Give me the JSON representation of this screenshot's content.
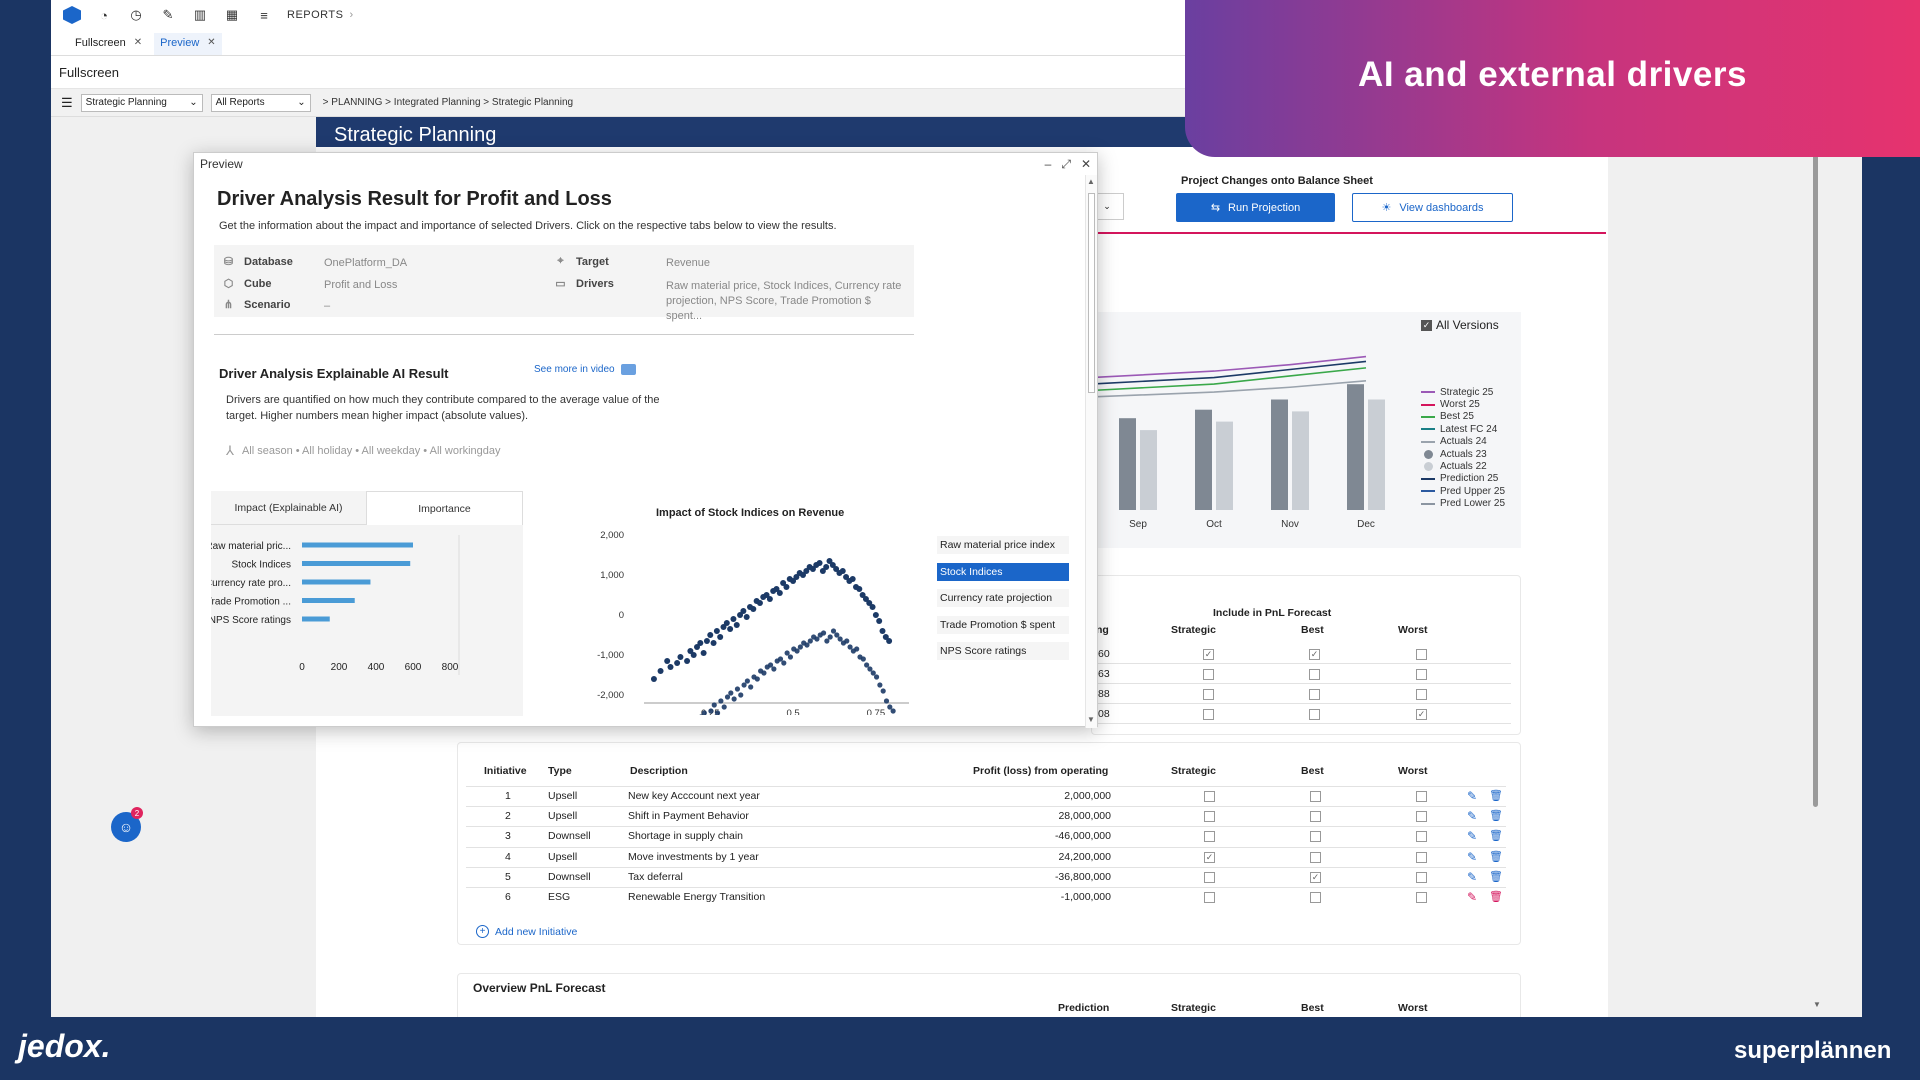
{
  "topbar": {
    "reports_label": "REPORTS"
  },
  "tabs": [
    {
      "label": "Fullscreen"
    },
    {
      "label": "Preview"
    }
  ],
  "subbar": {
    "title": "Fullscreen"
  },
  "toolbar": {
    "dropdown1": "Strategic Planning",
    "dropdown2": "All Reports",
    "breadcrumb": "> PLANNING > Integrated Planning > Strategic Planning"
  },
  "report": {
    "title": "Strategic Planning",
    "project_title": "Project Changes onto Balance Sheet",
    "run_button": "Run Projection",
    "view_button": "View dashboards",
    "all_versions": "All Versions",
    "chart_x_labels": [
      "Sep",
      "Oct",
      "Nov",
      "Dec"
    ],
    "legend": [
      {
        "label": "Strategic 25",
        "color": "#9b59b6",
        "kind": "line"
      },
      {
        "label": "Worst 25",
        "color": "#d4155c",
        "kind": "line"
      },
      {
        "label": "Best 25",
        "color": "#3aa84a",
        "kind": "line"
      },
      {
        "label": "Latest FC 24",
        "color": "#1a7f86",
        "kind": "line"
      },
      {
        "label": "Actuals 24",
        "color": "#9aa3ad",
        "kind": "line"
      },
      {
        "label": "Actuals 23",
        "color": "#7f8893",
        "kind": "dot"
      },
      {
        "label": "Actuals 22",
        "color": "#c9ced4",
        "kind": "dot"
      },
      {
        "label": "Prediction 25",
        "color": "#1c3a66",
        "kind": "line"
      },
      {
        "label": "Pred Upper 25",
        "color": "#2c5aa0",
        "kind": "line"
      },
      {
        "label": "Pred Lower 25",
        "color": "#8b95a1",
        "kind": "line"
      }
    ],
    "forecast_group": "Include in PnL Forecast",
    "forecast_cols": [
      "ng",
      "Strategic",
      "Best",
      "Worst"
    ],
    "forecast_rows": [
      {
        "frag": "60",
        "strategic": true,
        "best": true,
        "worst": false
      },
      {
        "frag": "63",
        "strategic": false,
        "best": false,
        "worst": false
      },
      {
        "frag": "88",
        "strategic": false,
        "best": false,
        "worst": false
      },
      {
        "frag": "08",
        "strategic": false,
        "best": false,
        "worst": true
      }
    ],
    "initiatives_header": [
      "Initiative",
      "Type",
      "Description",
      "Profit (loss) from operating",
      "Strategic",
      "Best",
      "Worst"
    ],
    "initiatives": [
      {
        "id": "1",
        "type": "Upsell",
        "desc": "New key Acccount next year",
        "profit": "2,000,000",
        "strategic": false,
        "best": false,
        "worst": false
      },
      {
        "id": "2",
        "type": "Upsell",
        "desc": "Shift in Payment Behavior",
        "profit": "28,000,000",
        "strategic": false,
        "best": false,
        "worst": false
      },
      {
        "id": "3",
        "type": "Downsell",
        "desc": "Shortage in supply chain",
        "profit": "-46,000,000",
        "strategic": false,
        "best": false,
        "worst": false
      },
      {
        "id": "4",
        "type": "Upsell",
        "desc": "Move investments by 1 year",
        "profit": "24,200,000",
        "strategic": true,
        "best": false,
        "worst": false
      },
      {
        "id": "5",
        "type": "Downsell",
        "desc": "Tax deferral",
        "profit": "-36,800,000",
        "strategic": false,
        "best": true,
        "worst": false
      },
      {
        "id": "6",
        "type": "ESG",
        "desc": "Renewable Energy Transition",
        "profit": "-1,000,000",
        "strategic": false,
        "best": false,
        "worst": false
      }
    ],
    "add_initiative": "Add new Initiative",
    "overview_title": "Overview PnL Forecast",
    "overview_cols": [
      "Prediction",
      "Strategic",
      "Best",
      "Worst"
    ]
  },
  "preview": {
    "window_title": "Preview",
    "heading": "Driver Analysis Result for Profit and Loss",
    "subtitle": "Get the information about the impact and importance of selected Drivers. Click on the respective tabs below to view the results.",
    "info": {
      "database_label": "Database",
      "database_value": "OnePlatform_DA",
      "cube_label": "Cube",
      "cube_value": "Profit and Loss",
      "scenario_label": "Scenario",
      "scenario_value": "–",
      "target_label": "Target",
      "target_value": "Revenue",
      "drivers_label": "Drivers",
      "drivers_value": "Raw material price, Stock Indices, Currency rate projection, NPS Score, Trade Promotion $ spent..."
    },
    "xai_title": "Driver Analysis Explainable AI Result",
    "see_more": "See more in video",
    "xai_desc": "Drivers are quantified on how much they contribute compared to the average value of the target. Higher numbers mean higher impact (absolute values).",
    "filters": "All season • All holiday • All weekday • All workingday",
    "tab_impact": "Impact (Explainable AI)",
    "tab_importance": "Importance",
    "scatter_title": "Impact of Stock Indices on Revenue",
    "drivers": [
      "Raw material price index",
      "Stock Indices",
      "Currency rate projection",
      "Trade Promotion $ spent",
      "NPS Score ratings"
    ],
    "selected_driver": 1
  },
  "chart_data": [
    {
      "type": "bar",
      "title": "",
      "orientation": "horizontal",
      "categories": [
        "Raw material pric...",
        "Stock Indices",
        "Currency rate pro...",
        "Trade Promotion ...",
        "NPS Score ratings"
      ],
      "values": [
        600,
        585,
        370,
        285,
        150
      ],
      "xlim": [
        0,
        800
      ],
      "xticks": [
        0,
        200,
        400,
        600,
        800
      ],
      "color": "#4a9bd6"
    },
    {
      "type": "scatter",
      "title": "Impact of Stock Indices on Revenue",
      "xlim": [
        0.05,
        0.85
      ],
      "ylim": [
        -2000,
        2000
      ],
      "xticks": [
        0.25,
        0.5,
        0.75
      ],
      "yticks": [
        2000,
        1000,
        0,
        -1000,
        -2000
      ],
      "ytick_labels": [
        "2,000",
        "1,000",
        "0",
        "-1,000",
        "-2,000"
      ],
      "color": "#1c3a66",
      "x": [
        0.08,
        0.1,
        0.12,
        0.13,
        0.15,
        0.16,
        0.18,
        0.19,
        0.2,
        0.21,
        0.22,
        0.23,
        0.24,
        0.25,
        0.26,
        0.27,
        0.28,
        0.29,
        0.3,
        0.31,
        0.32,
        0.33,
        0.34,
        0.35,
        0.36,
        0.37,
        0.38,
        0.39,
        0.4,
        0.41,
        0.42,
        0.43,
        0.44,
        0.45,
        0.46,
        0.47,
        0.48,
        0.49,
        0.5,
        0.51,
        0.52,
        0.53,
        0.54,
        0.55,
        0.56,
        0.57,
        0.58,
        0.59,
        0.6,
        0.61,
        0.62,
        0.63,
        0.64,
        0.65,
        0.66,
        0.67,
        0.68,
        0.69,
        0.7,
        0.71,
        0.72,
        0.73,
        0.74,
        0.75,
        0.76,
        0.77,
        0.78,
        0.79
      ],
      "y": [
        -1600,
        -1400,
        -1150,
        -1300,
        -1200,
        -1050,
        -1150,
        -900,
        -1000,
        -800,
        -700,
        -950,
        -650,
        -500,
        -700,
        -400,
        -550,
        -300,
        -200,
        -350,
        -100,
        -250,
        0,
        100,
        -50,
        200,
        150,
        350,
        300,
        450,
        500,
        400,
        600,
        650,
        550,
        800,
        700,
        900,
        850,
        950,
        1050,
        1000,
        1100,
        1200,
        1150,
        1250,
        1300,
        1100,
        1200,
        1350,
        1250,
        1150,
        1050,
        1100,
        950,
        850,
        900,
        700,
        650,
        500,
        400,
        300,
        200,
        0,
        -150,
        -400,
        -550,
        -650
      ]
    },
    {
      "type": "bar",
      "title": "",
      "categories": [
        "Sep",
        "Oct",
        "Nov",
        "Dec"
      ],
      "series": [
        {
          "name": "Actuals 23",
          "values": [
            540,
            590,
            650,
            740
          ]
        },
        {
          "name": "Actuals 22",
          "values": [
            470,
            520,
            580,
            650
          ]
        }
      ],
      "lines": [
        {
          "name": "Strategic 25",
          "values": [
            820,
            860,
            900,
            950
          ]
        },
        {
          "name": "Prediction 25",
          "values": [
            780,
            820,
            870,
            920
          ]
        },
        {
          "name": "Best 25",
          "values": [
            740,
            780,
            830,
            880
          ]
        },
        {
          "name": "Actuals 24",
          "values": [
            700,
            730,
            760,
            800
          ]
        }
      ]
    }
  ]
}
